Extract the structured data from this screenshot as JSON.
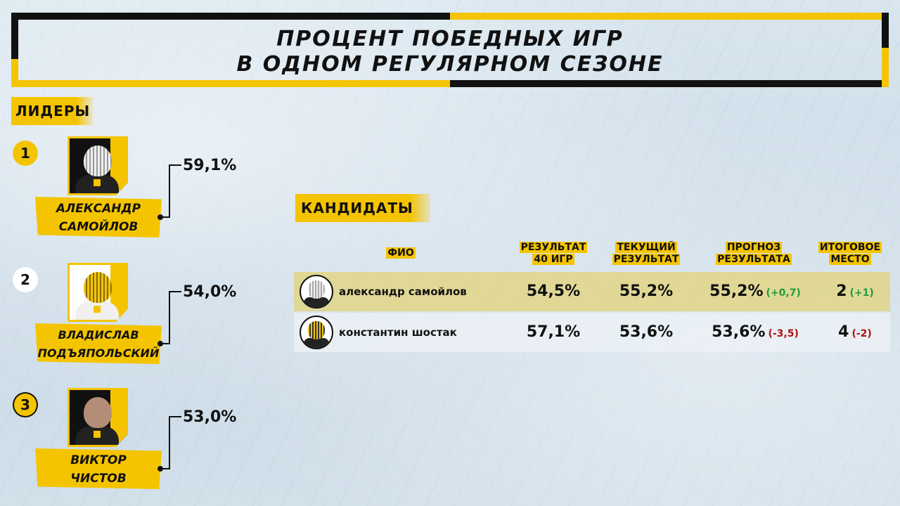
{
  "title": {
    "line1": "ПРОЦЕНТ ПОБЕДНЫХ ИГР",
    "line2": "В ОДНОМ РЕГУЛЯРНОМ СЕЗОНЕ"
  },
  "leaders": {
    "label": "ЛИДЕРЫ",
    "items": [
      {
        "rank": "1",
        "name_line1": "АЛЕКСАНДР",
        "name_line2": "САМОЙЛОВ",
        "value": "59,1%"
      },
      {
        "rank": "2",
        "name_line1": "ВЛАДИСЛАВ",
        "name_line2": "ПОДЪЯПОЛЬСКИЙ",
        "value": "54,0%"
      },
      {
        "rank": "3",
        "name_line1": "ВИКТОР",
        "name_line2": "ЧИСТОВ",
        "value": "53,0%"
      }
    ]
  },
  "candidates": {
    "label": "КАНДИДАТЫ",
    "columns": {
      "name": "ФИО",
      "result40_l1": "РЕЗУЛЬТАТ",
      "result40_l2": "40 ИГР",
      "current_l1": "ТЕКУЩИЙ",
      "current_l2": "РЕЗУЛЬТАТ",
      "forecast_l1": "ПРОГНОЗ",
      "forecast_l2": "РЕЗУЛЬТАТА",
      "final_l1": "ИТОГОВОЕ",
      "final_l2": "МЕСТО"
    },
    "rows": [
      {
        "name": "александр самойлов",
        "result40": "54,5%",
        "current": "55,2%",
        "forecast": "55,2%",
        "forecast_delta": "(+0,7)",
        "place": "2",
        "place_delta": "(+1)"
      },
      {
        "name": "константин шостак",
        "result40": "57,1%",
        "current": "53,6%",
        "forecast": "53,6%",
        "forecast_delta": "(-3,5)",
        "place": "4",
        "place_delta": "(-2)"
      }
    ]
  },
  "colors": {
    "accent": "#f5c400",
    "dark": "#111111",
    "positive": "#1e9c3a",
    "negative": "#b01010"
  }
}
